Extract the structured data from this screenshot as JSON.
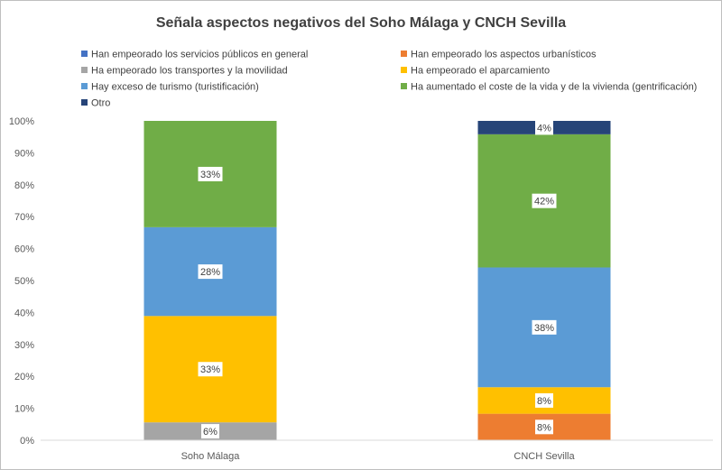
{
  "chart_data": {
    "type": "bar",
    "stacked": true,
    "percent_stacked": true,
    "title": "Señala aspectos negativos del Soho Málaga y CNCH Sevilla",
    "categories": [
      "Soho Málaga",
      "CNCH Sevilla"
    ],
    "ylim": [
      0,
      100
    ],
    "yticks": [
      "0%",
      "10%",
      "20%",
      "30%",
      "40%",
      "50%",
      "60%",
      "70%",
      "80%",
      "90%",
      "100%"
    ],
    "grid": false,
    "legend_position": "top",
    "series": [
      {
        "name": "Han empeorado los servicios públicos en general",
        "color": "#4472C4",
        "values": [
          0,
          0
        ],
        "labels": [
          "",
          ""
        ]
      },
      {
        "name": "Han empeorado los aspectos urbanísticos",
        "color": "#ED7D31",
        "values": [
          0,
          8.3
        ],
        "labels": [
          "",
          "8%"
        ]
      },
      {
        "name": "Ha empeorado los transportes y la movilidad",
        "color": "#A5A5A5",
        "values": [
          5.6,
          0
        ],
        "labels": [
          "6%",
          ""
        ]
      },
      {
        "name": "Ha empeorado el aparcamiento",
        "color": "#FFC000",
        "values": [
          33.3,
          8.3
        ],
        "labels": [
          "33%",
          "8%"
        ]
      },
      {
        "name": "Hay exceso de turismo (turistificación)",
        "color": "#5B9BD5",
        "values": [
          27.8,
          37.5
        ],
        "labels": [
          "28%",
          "38%"
        ]
      },
      {
        "name": "Ha aumentado el coste de la vida y de la vivienda (gentrificación)",
        "color": "#70AD47",
        "values": [
          33.3,
          41.7
        ],
        "labels": [
          "33%",
          "42%"
        ]
      },
      {
        "name": "Otro",
        "color": "#264478",
        "values": [
          0,
          4.2
        ],
        "labels": [
          "",
          "4%"
        ]
      }
    ]
  }
}
